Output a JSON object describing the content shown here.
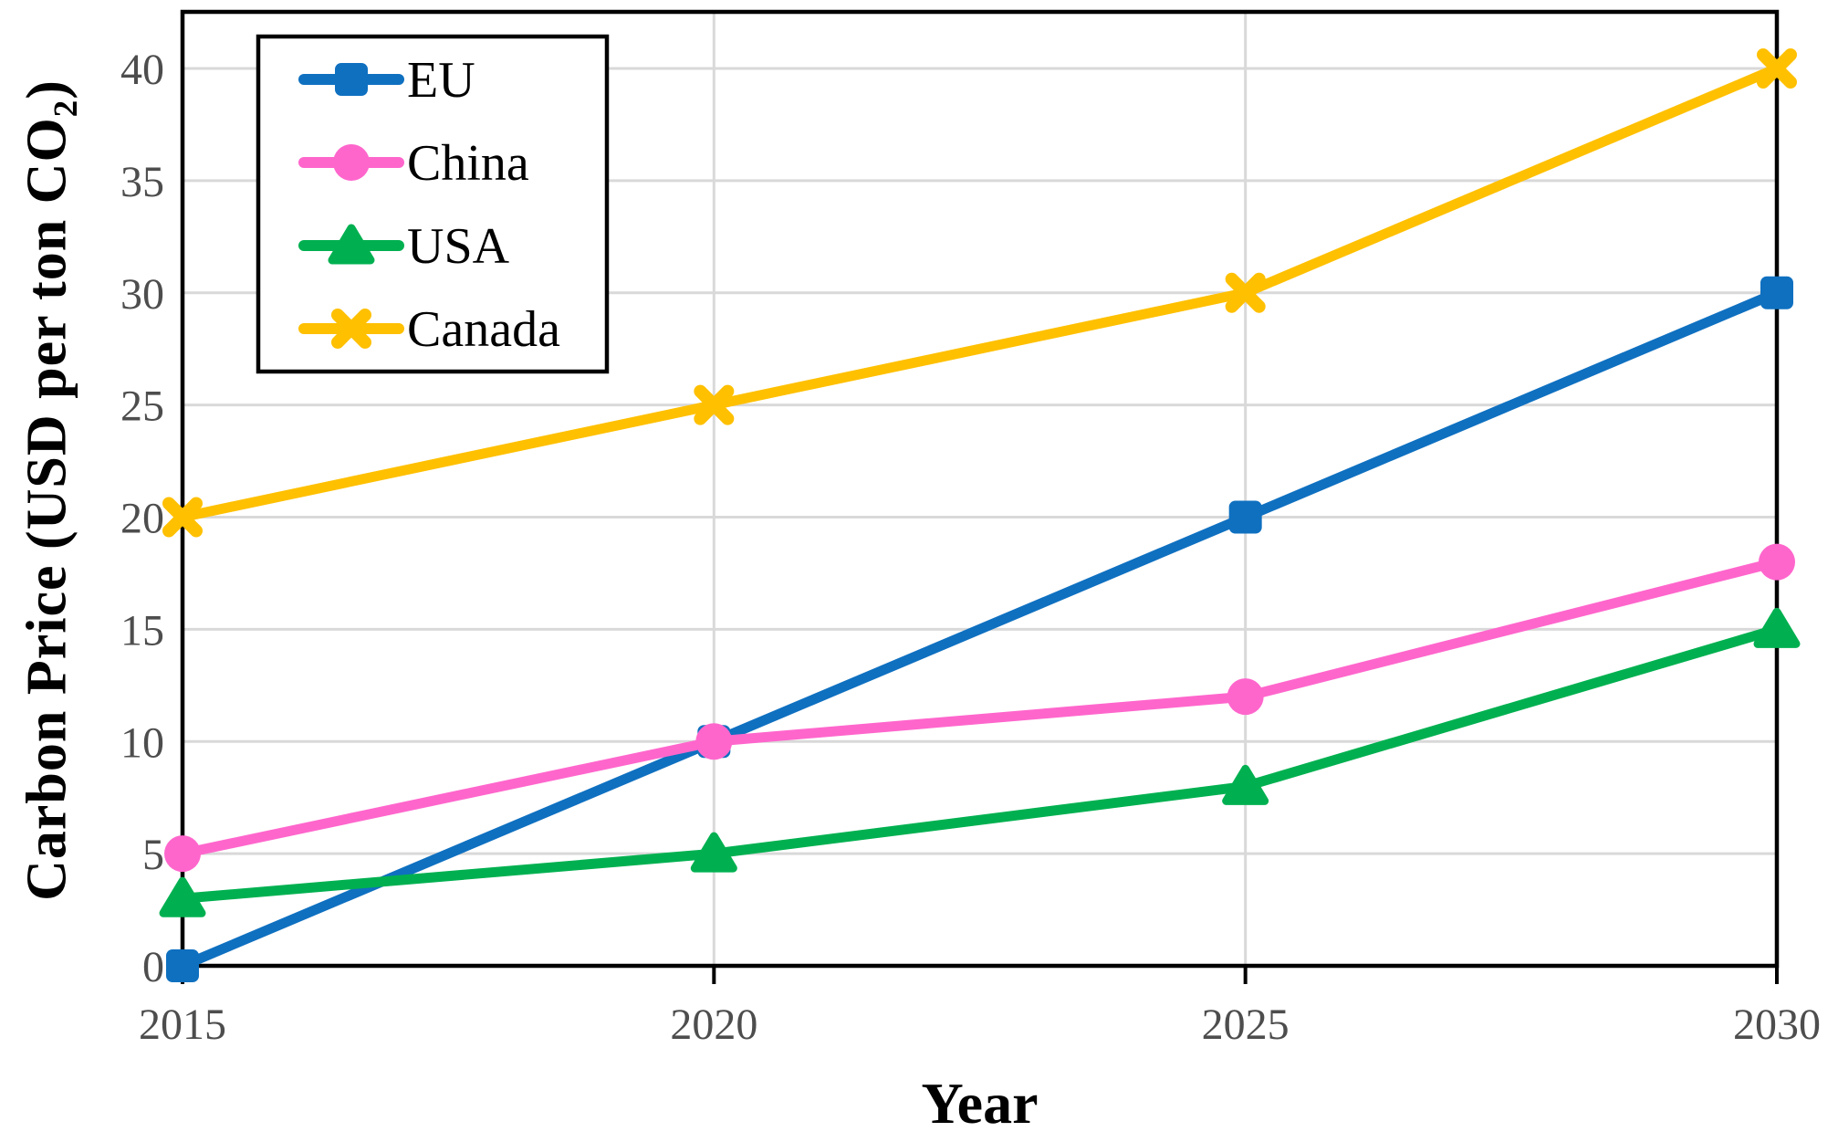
{
  "chart_data": {
    "type": "line",
    "title": "",
    "xlabel": "Year",
    "ylabel": "Carbon Price (USD per ton CO₂)",
    "x": [
      2015,
      2020,
      2025,
      2030
    ],
    "xticks": [
      "2015",
      "2020",
      "2025",
      "2030"
    ],
    "yticks": [
      0,
      5,
      10,
      15,
      20,
      25,
      30,
      35,
      40
    ],
    "ylim": [
      0,
      42.5
    ],
    "grid": true,
    "legend_position": "top-left",
    "series": [
      {
        "name": "EU",
        "marker": "square",
        "color": "#0F70C0",
        "values": [
          0,
          10,
          20,
          30
        ]
      },
      {
        "name": "China",
        "marker": "circle",
        "color": "#FF66CC",
        "values": [
          5,
          10,
          12,
          18
        ]
      },
      {
        "name": "USA",
        "marker": "triangle",
        "color": "#00B050",
        "values": [
          3,
          5,
          8,
          15
        ]
      },
      {
        "name": "Canada",
        "marker": "x",
        "color": "#FFC000",
        "values": [
          20,
          25,
          30,
          40
        ]
      }
    ]
  },
  "colors": {
    "background": "#FFFFFF",
    "grid": "#D9D9D9",
    "axis_frame": "#000000",
    "tick_label": "#4D4D4D",
    "legend_border": "#000000",
    "legend_text": "#000000"
  }
}
